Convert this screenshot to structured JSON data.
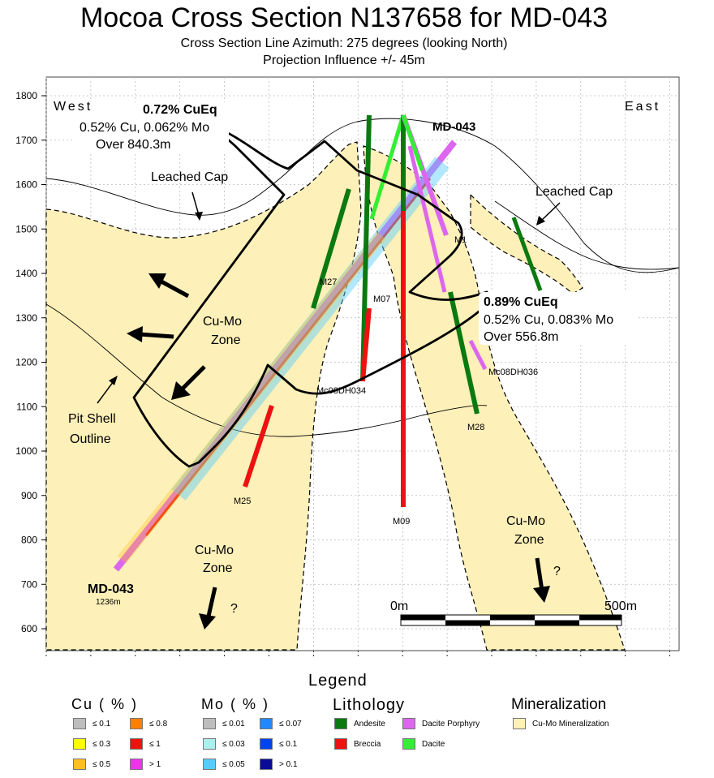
{
  "title": "Mocoa Cross Section N137658 for MD-043",
  "subtitle1": "Cross Section Line Azimuth: 275 degrees (looking North)",
  "subtitle2": "Projection Influence +/- 45m",
  "elevation_ticks": [
    "1800",
    "1700",
    "1600",
    "1500",
    "1400",
    "1300",
    "1200",
    "1100",
    "1000",
    "900",
    "800",
    "700",
    "600"
  ],
  "direction": {
    "west": "West",
    "east": "East"
  },
  "labels": {
    "leached_cap_left": "Leached Cap",
    "leached_cap_right": "Leached Cap",
    "zone_main": [
      "Cu-Mo",
      "Zone"
    ],
    "zone_lower_left": [
      "Cu-Mo",
      "Zone"
    ],
    "zone_lower_right": [
      "Cu-Mo",
      "Zone"
    ],
    "pit_shell": [
      "Pit Shell",
      "Outline"
    ],
    "question": "?"
  },
  "callouts": {
    "upper": {
      "headline": "0.72% CuEq",
      "line1": "0.52% Cu, 0.062% Mo",
      "line2": "Over 840.3m"
    },
    "lower": {
      "headline": "0.89% CuEq",
      "line1": "0.52% Cu, 0.083% Mo",
      "line2": "Over 556.8m"
    }
  },
  "drillholes": {
    "md043_top": "MD-043",
    "md043_bottom": "MD-043",
    "md043_depth": "1236m",
    "others": [
      "M1",
      "M27",
      "M07",
      "Mc08DH034",
      "Mc08DH036",
      "M28",
      "M25",
      "M09"
    ]
  },
  "scale": {
    "start": "0m",
    "end": "500m"
  },
  "legend": {
    "title": "Legend",
    "cu": {
      "title": "Cu ( % )",
      "items": [
        {
          "label": "≤ 0.1",
          "color": "#bdbdbd"
        },
        {
          "label": "≤ 0.8",
          "color": "#ff8000"
        },
        {
          "label": "≤ 0.3",
          "color": "#ffff00"
        },
        {
          "label": "≤ 1",
          "color": "#ee1111"
        },
        {
          "label": "≤ 0.5",
          "color": "#ffc020"
        },
        {
          "label": "> 1",
          "color": "#ee33ee"
        }
      ]
    },
    "mo": {
      "title": "Mo ( % )",
      "items": [
        {
          "label": "≤ 0.01",
          "color": "#bdbdbd"
        },
        {
          "label": "≤ 0.07",
          "color": "#2288ff"
        },
        {
          "label": "≤ 0.03",
          "color": "#aaf0ee"
        },
        {
          "label": "≤ 0.1",
          "color": "#0044ee"
        },
        {
          "label": "≤ 0.05",
          "color": "#55ccff"
        },
        {
          "label": "> 0.1",
          "color": "#0b0b99"
        }
      ]
    },
    "lithology": {
      "title": "Lithology",
      "items": [
        {
          "label": "Andesite",
          "color": "#0a7a10"
        },
        {
          "label": "Dacite Porphyry",
          "color": "#dd66ee"
        },
        {
          "label": "Breccia",
          "color": "#ee1111"
        },
        {
          "label": "Dacite",
          "color": "#33ee33"
        }
      ]
    },
    "mineralization": {
      "title": "Mineralization",
      "items": [
        {
          "label": "Cu-Mo Mineralization",
          "color": "#fdf0b8"
        }
      ]
    }
  },
  "colors": {
    "mineralization_fill": "#fdf0b8",
    "andesite": "#0a7a10",
    "breccia": "#ee1111",
    "dacite": "#33ee33",
    "dacite_porphyry": "#dd66ee"
  }
}
